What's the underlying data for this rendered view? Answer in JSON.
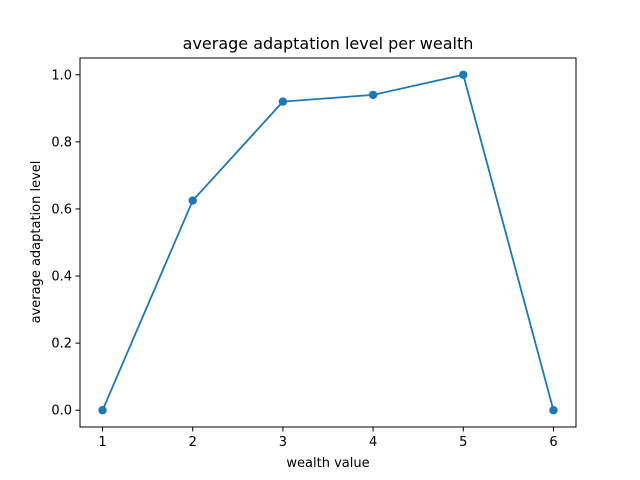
{
  "chart_data": {
    "type": "line",
    "title": "average adaptation level per wealth",
    "xlabel": "wealth value",
    "ylabel": "average adaptation level",
    "x": [
      1,
      2,
      3,
      4,
      5,
      6
    ],
    "series": [
      {
        "values": [
          0.0,
          0.625,
          0.92,
          0.94,
          1.0,
          0.0
        ],
        "color": "#1f77b4",
        "marker": "circle"
      }
    ],
    "xlim": [
      0.75,
      6.25
    ],
    "ylim": [
      -0.05,
      1.05
    ],
    "xticks": [
      1,
      2,
      3,
      4,
      5,
      6
    ],
    "xtick_labels": [
      "1",
      "2",
      "3",
      "4",
      "5",
      "6"
    ],
    "yticks": [
      0.0,
      0.2,
      0.4,
      0.6,
      0.8,
      1.0
    ],
    "ytick_labels": [
      "0.0",
      "0.2",
      "0.4",
      "0.6",
      "0.8",
      "1.0"
    ],
    "grid": false,
    "legend": "none"
  }
}
